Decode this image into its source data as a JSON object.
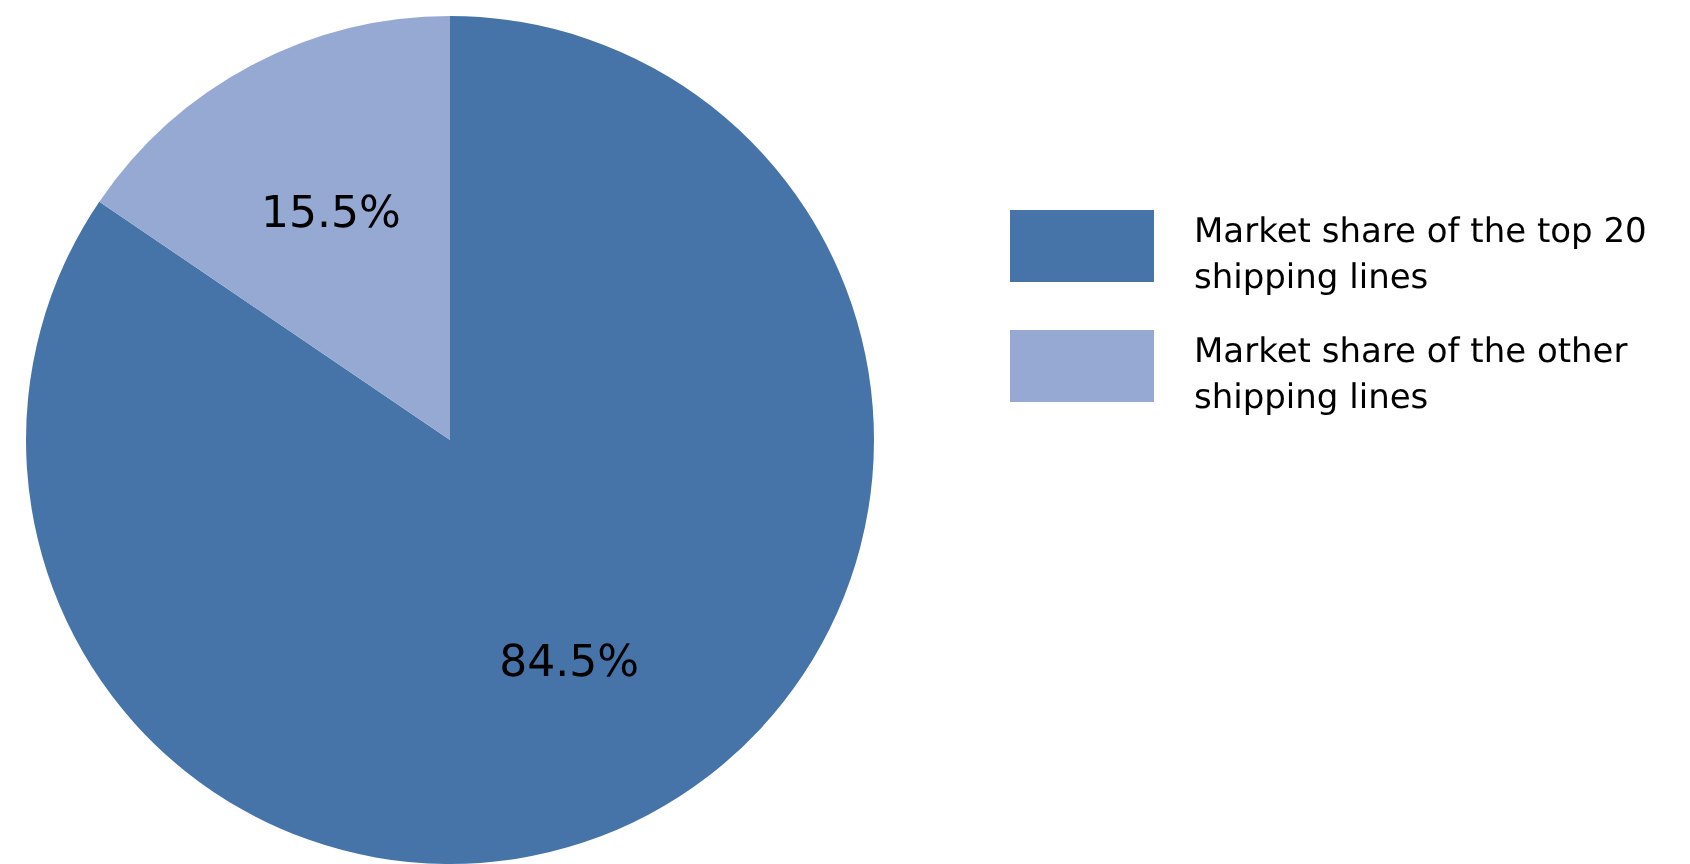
{
  "chart_data": {
    "type": "pie",
    "categories": [
      "Market share of the top 20 shipping lines",
      "Market share of the other shipping lines"
    ],
    "values": [
      84.5,
      15.5
    ],
    "colors": [
      "#4674a8",
      "#95a9d3"
    ],
    "value_labels": [
      "84.5%",
      "15.5%"
    ],
    "legend": "right"
  }
}
